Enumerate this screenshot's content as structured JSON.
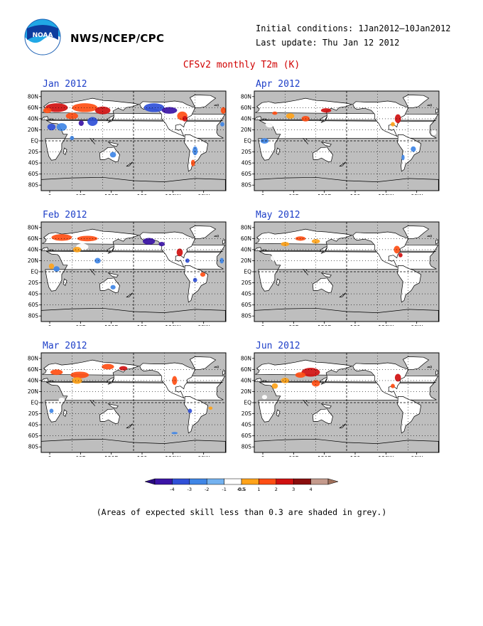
{
  "header": {
    "org": "NWS/NCEP/CPC",
    "initial_conditions": "Initial conditions: 1Jan2012—10Jan2012",
    "last_update": "Last update: Thu Jan 12 2012",
    "logo_text": "NOAA"
  },
  "title": "CFSv2 monthly T2m (K)",
  "panels": [
    {
      "title": "Jan 2012"
    },
    {
      "title": "Apr 2012"
    },
    {
      "title": "Feb 2012"
    },
    {
      "title": "May 2012"
    },
    {
      "title": "Mar 2012"
    },
    {
      "title": "Jun 2012"
    }
  ],
  "axes": {
    "lat_labels": [
      "80N",
      "60N",
      "40N",
      "20N",
      "EQ",
      "20S",
      "40S",
      "60S",
      "80S"
    ],
    "lon_labels": [
      "0",
      "60E",
      "120E",
      "180",
      "120W",
      "60W",
      "0"
    ]
  },
  "colorbar": {
    "labels": [
      "-4",
      "-3",
      "-2",
      "-1",
      "-0.5",
      "0.5",
      "1",
      "2",
      "3",
      "4"
    ],
    "colors": [
      "#3b14a6",
      "#3050d8",
      "#3f86e6",
      "#74b2f0",
      "#ffffff",
      "#ffa31a",
      "#ff4e14",
      "#d01010",
      "#8a0d0d",
      "#c49a8c"
    ],
    "end_low": "#2a0a80",
    "end_high": "#a0705a"
  },
  "style": {
    "skill_grey": "#bebebe",
    "land_ok": "#ffffff",
    "title_color": "#d00000",
    "panel_title_color": "#1e3fc8"
  },
  "footnote": "(Areas of expected skill less than 0.3 are shaded in grey.)"
}
